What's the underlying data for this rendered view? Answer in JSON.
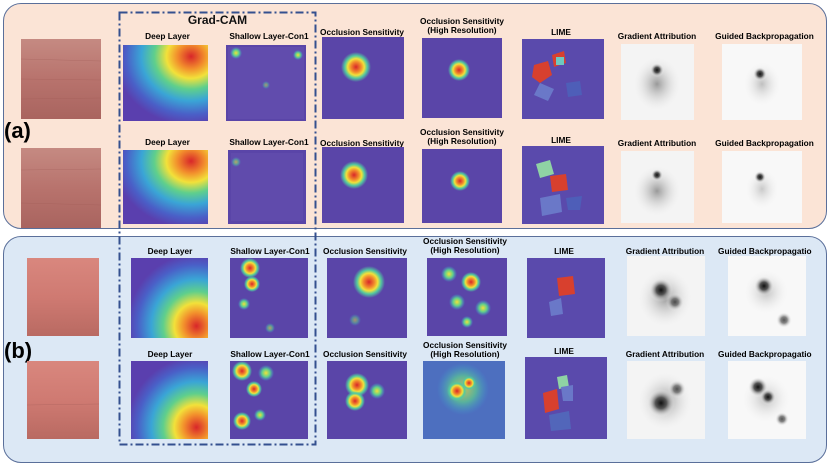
{
  "title": "Grad-CAM",
  "rows": [
    {
      "label": "(a)"
    },
    {
      "label": "(b)"
    }
  ],
  "labels": {
    "deep_layer": "Deep Layer",
    "shallow_layer": "Shallow Layer-Con1",
    "occlusion": "Occlusion Sensitivity",
    "occlusion_hr_1": "Occlusion Sensitivity",
    "occlusion_hr_2": "(High Resolution)",
    "lime": "LIME",
    "gradient": "Gradient Attribution",
    "guided": "Guided Backpropagation",
    "guided_cut": "Guided Backpropagatio"
  },
  "colors": {
    "panel_a_bg": "#fbe4d6",
    "panel_b_bg": "#dce8f5",
    "border": "#5a6f9a",
    "gradcam_dash": "#34508f"
  }
}
